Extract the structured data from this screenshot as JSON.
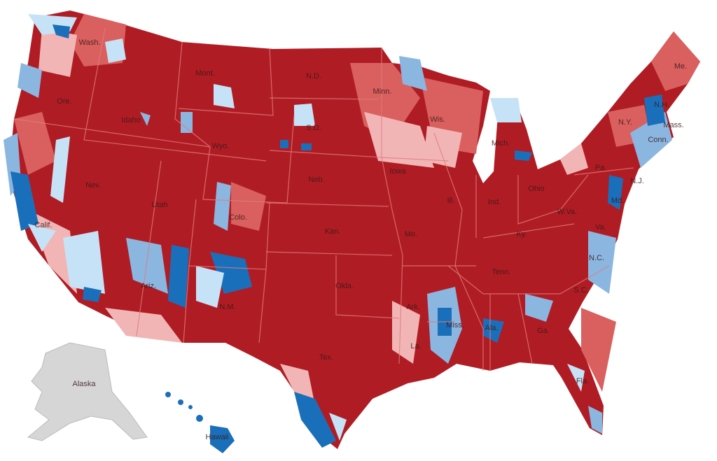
{
  "map": {
    "colors": {
      "strong_red": "#b01c24",
      "medium_red": "#d9605e",
      "light_red": "#f2b5b5",
      "light_blue": "#c6e2f7",
      "medium_blue": "#8ab6e0",
      "strong_blue": "#1a6fba",
      "no_data": "#d6d6d6"
    },
    "states": {
      "wa": "Wash.",
      "or": "Ore.",
      "ca": "Calif.",
      "nv": "Nev.",
      "id": "Idaho",
      "mt": "Mont.",
      "wy": "Wyo.",
      "ut": "Utah",
      "co": "Colo.",
      "az": "Ariz.",
      "nm": "N.M.",
      "nd": "N.D.",
      "sd": "S.D.",
      "ne": "Neb.",
      "ks": "Kan.",
      "ok": "Okla.",
      "tx": "Tex.",
      "mn": "Minn.",
      "ia": "Iowa",
      "mo": "Mo.",
      "ar": "Ark.",
      "la": "La.",
      "wi": "Wis.",
      "il": "Ill.",
      "mi": "Mich.",
      "in": "Ind.",
      "oh": "Ohio",
      "ky": "Ky.",
      "tn": "Tenn.",
      "ms": "Miss.",
      "al": "Ala.",
      "ga": "Ga.",
      "fl": "Fla.",
      "sc": "S.C.",
      "nc": "N.C.",
      "va": "Va.",
      "wv": "W.Va.",
      "pa": "Pa.",
      "ny": "N.Y.",
      "me": "Me.",
      "nh": "N.H.",
      "ma": "Mass.",
      "ct": "Conn.",
      "nj": "N.J.",
      "md": "Md.",
      "ak": "Alaska",
      "hi": "Hawaii"
    }
  }
}
